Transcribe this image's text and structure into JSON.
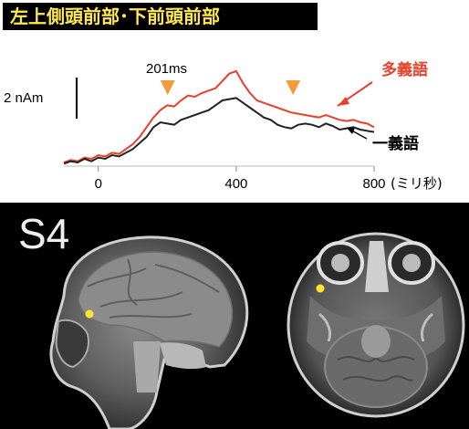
{
  "title": "左上側頭前部･下前頭前部",
  "chart_data": {
    "type": "line",
    "x_unit_label": "(ミリ秒)",
    "xlim": [
      -100,
      800
    ],
    "xticks": [
      0,
      400,
      800
    ],
    "scale_bar_label": "2 nAm",
    "annotation_latency": "201ms",
    "arrow_markers_x": [
      201,
      565
    ],
    "series": [
      {
        "name": "多義語",
        "color": "#e8402a",
        "x": [
          -100,
          -80,
          -60,
          -40,
          -20,
          0,
          20,
          40,
          60,
          80,
          100,
          120,
          140,
          160,
          180,
          200,
          220,
          240,
          260,
          280,
          300,
          320,
          340,
          360,
          380,
          400,
          420,
          440,
          460,
          480,
          500,
          520,
          540,
          560,
          580,
          600,
          620,
          640,
          660,
          680,
          700,
          720,
          740,
          760,
          780,
          800
        ],
        "y": [
          0.15,
          0.25,
          0.2,
          0.35,
          0.3,
          0.45,
          0.4,
          0.55,
          0.5,
          0.7,
          0.9,
          1.2,
          1.6,
          2.0,
          2.3,
          2.5,
          2.45,
          2.7,
          2.9,
          2.85,
          3.0,
          3.1,
          3.2,
          3.5,
          3.8,
          3.9,
          3.4,
          3.0,
          2.7,
          2.6,
          2.5,
          2.4,
          2.3,
          2.2,
          2.15,
          2.1,
          2.05,
          2.0,
          2.1,
          2.0,
          1.9,
          1.85,
          1.9,
          1.8,
          1.75,
          1.6
        ]
      },
      {
        "name": "一義語",
        "color": "#222222",
        "x": [
          -100,
          -80,
          -60,
          -40,
          -20,
          0,
          20,
          40,
          60,
          80,
          100,
          120,
          140,
          160,
          180,
          200,
          220,
          240,
          260,
          280,
          300,
          320,
          340,
          360,
          380,
          400,
          420,
          440,
          460,
          480,
          500,
          520,
          540,
          560,
          580,
          600,
          620,
          640,
          660,
          680,
          700,
          720,
          740,
          760,
          780,
          800
        ],
        "y": [
          0.1,
          0.2,
          0.15,
          0.3,
          0.2,
          0.35,
          0.3,
          0.45,
          0.4,
          0.55,
          0.7,
          0.95,
          1.2,
          1.6,
          1.8,
          1.75,
          1.7,
          1.9,
          2.0,
          2.1,
          2.2,
          2.3,
          2.5,
          2.7,
          2.75,
          2.8,
          2.6,
          2.4,
          2.2,
          2.0,
          1.9,
          1.7,
          1.6,
          1.55,
          1.7,
          1.75,
          1.7,
          1.6,
          1.75,
          1.65,
          1.5,
          1.55,
          1.6,
          1.5,
          1.45,
          1.4
        ]
      }
    ]
  },
  "mri": {
    "subject_label": "S4",
    "views": [
      "sagittal",
      "axial"
    ],
    "marker_color": "#ffe62a"
  }
}
